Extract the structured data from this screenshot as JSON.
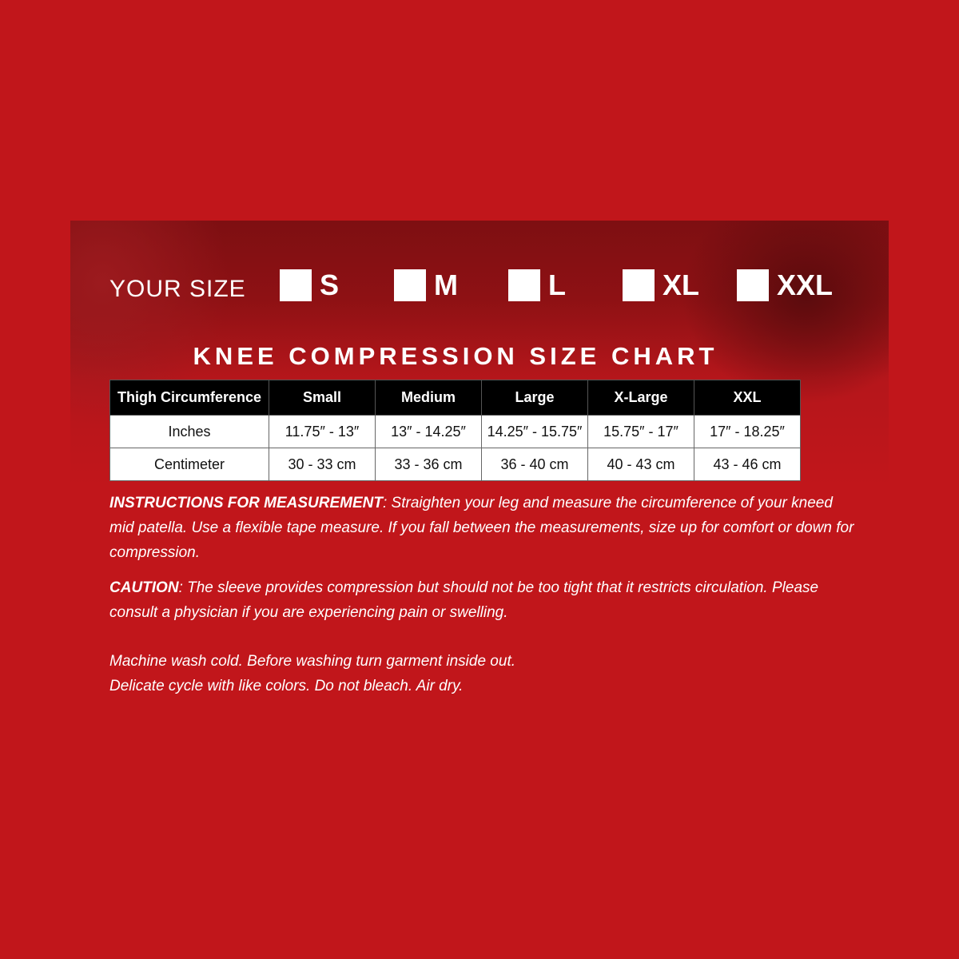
{
  "colors": {
    "background": "#c1161b",
    "banner": "#8e1114",
    "table_header": "#000000"
  },
  "your_size_label": "YOUR SIZE",
  "size_options": [
    {
      "label": "S",
      "checked": false
    },
    {
      "label": "M",
      "checked": false
    },
    {
      "label": "L",
      "checked": false
    },
    {
      "label": "XL",
      "checked": false
    },
    {
      "label": "XXL",
      "checked": false
    }
  ],
  "title": "KNEE COMPRESSION SIZE CHART",
  "table": {
    "headers": [
      "Thigh Circumference",
      "Small",
      "Medium",
      "Large",
      "X-Large",
      "XXL"
    ],
    "rows": [
      [
        "Inches",
        "11.75″ - 13″",
        "13″ - 14.25″",
        "14.25″ - 15.75″",
        "15.75″ - 17″",
        "17″ - 18.25″"
      ],
      [
        "Centimeter",
        "30 - 33 cm",
        "33 - 36 cm",
        "36 - 40 cm",
        "40 - 43 cm",
        "43 - 46 cm"
      ]
    ]
  },
  "instructions": {
    "label": "INSTRUCTIONS FOR MEASUREMENT",
    "text": ": Straighten your leg and measure the circumference of your kneed mid patella. Use a flexible tape measure. If you fall between the measurements, size up for comfort or down for compression."
  },
  "caution": {
    "label": "CAUTION",
    "text": ": The sleeve provides compression but should not be too tight that it restricts circulation. Please consult a physician if you are experiencing pain or swelling."
  },
  "care": [
    "Machine wash cold. Before washing turn garment inside out.",
    "Delicate cycle with like colors. Do not bleach. Air dry."
  ]
}
